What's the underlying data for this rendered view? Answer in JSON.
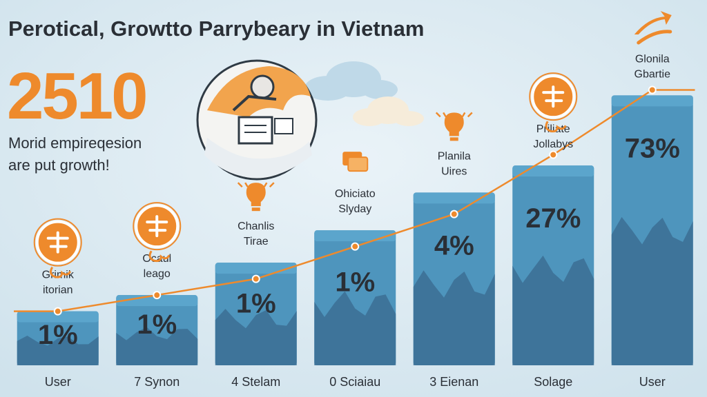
{
  "header": {
    "title": "Perotical, Growtto Parrybeary in Vietnam",
    "big_number": "2510",
    "subtitle_lines": [
      "Morid empireqesion",
      "are put growth!"
    ]
  },
  "colors": {
    "accent": "#ee8a2c",
    "bar": "#4e95bd",
    "bar_top": "#5ba5cc",
    "mountain": "#3c6f94",
    "text": "#2a2f36",
    "background": "#dbe9f1"
  },
  "chart_data": {
    "type": "bar",
    "categories": [
      "User",
      "7 Synon",
      "4 Stelam",
      "0 Sciaiau",
      "3 Eienan",
      "Solage",
      "User"
    ],
    "values": [
      10,
      13,
      19,
      25,
      32,
      37,
      50
    ],
    "value_labels": [
      "1%",
      "1%",
      "1%",
      "1%",
      "4%",
      "27%",
      "73%"
    ],
    "annotations": [
      [
        "Grimik",
        "itorian"
      ],
      [
        "Ocaul",
        "leago"
      ],
      [
        "Chanlis",
        "Tirae"
      ],
      [
        "Ohiciato",
        "Slyday"
      ],
      [
        "Planila",
        "Uires"
      ],
      [
        "Priliate",
        "Jollabys"
      ],
      [
        "Glonila",
        "Gbartie"
      ]
    ],
    "line": [
      10,
      13,
      16,
      22,
      28,
      39,
      51
    ],
    "icons": [
      "gear-badge-icon",
      "flower-badge-icon",
      "lightbulb-icon",
      "cards-icon",
      "lightbulb-icon",
      "leaf-badge-icon",
      "arrows-icon"
    ],
    "title": "Perotical, Growtto Parrybeary in Vietnam",
    "ylim": [
      0,
      60
    ],
    "grid": false,
    "legend": "none"
  }
}
